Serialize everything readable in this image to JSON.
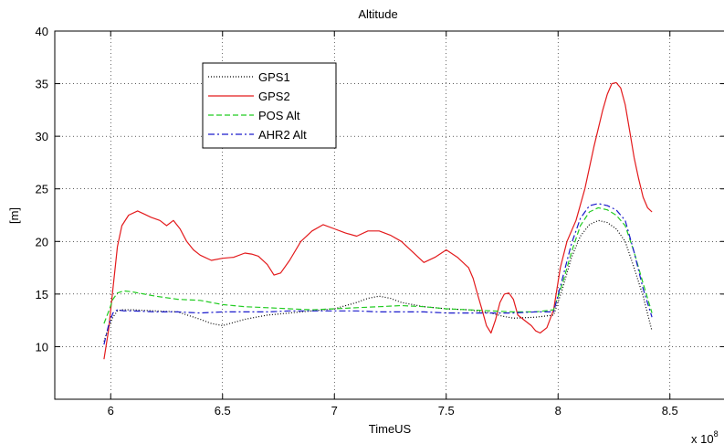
{
  "chart_data": {
    "type": "line",
    "title": "Altitude",
    "xlabel": "TimeUS",
    "ylabel": "[m]",
    "x_multiplier": "x 10",
    "x_multiplier_exp": "8",
    "xlim": [
      5.75,
      8.75
    ],
    "ylim": [
      5,
      40
    ],
    "x_ticks": [
      6,
      6.5,
      7,
      7.5,
      8,
      8.5
    ],
    "x_tick_labels": [
      "6",
      "6.5",
      "7",
      "7.5",
      "8",
      "8.5"
    ],
    "y_ticks": [
      10,
      15,
      20,
      25,
      30,
      35,
      40
    ],
    "y_tick_labels": [
      "10",
      "15",
      "20",
      "25",
      "30",
      "35",
      "40"
    ],
    "grid": true,
    "legend_position": "top-left",
    "series": [
      {
        "name": "GPS1",
        "color": "#000000",
        "style": "dotted",
        "x": [
          5.97,
          5.99,
          6.01,
          6.03,
          6.05,
          6.1,
          6.2,
          6.3,
          6.4,
          6.45,
          6.5,
          6.6,
          6.7,
          6.8,
          6.9,
          7.0,
          7.1,
          7.15,
          7.2,
          7.25,
          7.3,
          7.4,
          7.5,
          7.6,
          7.7,
          7.75,
          7.8,
          7.9,
          7.98,
          8.02,
          8.06,
          8.1,
          8.14,
          8.18,
          8.22,
          8.26,
          8.3,
          8.34,
          8.38,
          8.42
        ],
        "y": [
          10.5,
          11.8,
          12.8,
          13.4,
          13.5,
          13.5,
          13.4,
          13.3,
          12.6,
          12.2,
          12.0,
          12.6,
          13.0,
          13.2,
          13.4,
          13.6,
          14.2,
          14.6,
          14.8,
          14.6,
          14.2,
          13.8,
          13.6,
          13.5,
          13.2,
          12.9,
          12.7,
          12.8,
          13.0,
          15.5,
          18.5,
          20.5,
          21.6,
          22.0,
          21.8,
          21.2,
          20.0,
          17.5,
          14.8,
          11.5
        ]
      },
      {
        "name": "GPS2",
        "color": "#e31a1c",
        "style": "solid",
        "x": [
          5.97,
          5.99,
          6.01,
          6.03,
          6.05,
          6.08,
          6.12,
          6.15,
          6.18,
          6.22,
          6.25,
          6.28,
          6.31,
          6.34,
          6.37,
          6.4,
          6.45,
          6.5,
          6.55,
          6.6,
          6.63,
          6.66,
          6.7,
          6.73,
          6.76,
          6.8,
          6.85,
          6.9,
          6.95,
          7.0,
          7.05,
          7.1,
          7.15,
          7.2,
          7.25,
          7.3,
          7.35,
          7.4,
          7.45,
          7.5,
          7.55,
          7.6,
          7.62,
          7.64,
          7.66,
          7.68,
          7.7,
          7.72,
          7.74,
          7.76,
          7.78,
          7.8,
          7.82,
          7.85,
          7.88,
          7.9,
          7.92,
          7.95,
          7.98,
          8.01,
          8.04,
          8.08,
          8.12,
          8.16,
          8.2,
          8.22,
          8.24,
          8.26,
          8.28,
          8.3,
          8.32,
          8.34,
          8.36,
          8.38,
          8.4,
          8.42
        ],
        "y": [
          8.8,
          11.5,
          15.5,
          19.5,
          21.5,
          22.5,
          22.9,
          22.6,
          22.3,
          22.0,
          21.5,
          22.0,
          21.2,
          20.0,
          19.2,
          18.7,
          18.2,
          18.4,
          18.5,
          18.9,
          18.8,
          18.6,
          17.8,
          16.8,
          17.0,
          18.2,
          20.0,
          21.0,
          21.6,
          21.2,
          20.8,
          20.5,
          21.0,
          21.0,
          20.6,
          20.0,
          19.0,
          18.0,
          18.5,
          19.2,
          18.5,
          17.5,
          16.5,
          15.0,
          13.5,
          12.0,
          11.3,
          12.5,
          14.2,
          15.0,
          15.1,
          14.5,
          13.0,
          12.5,
          12.0,
          11.5,
          11.3,
          11.8,
          13.5,
          17.5,
          20.0,
          22.0,
          25.0,
          29.0,
          32.5,
          34.0,
          35.0,
          35.1,
          34.6,
          33.0,
          30.5,
          28.0,
          26.0,
          24.2,
          23.2,
          22.8
        ]
      },
      {
        "name": "POS Alt",
        "color": "#22cc22",
        "style": "dashed",
        "x": [
          5.97,
          5.99,
          6.01,
          6.03,
          6.06,
          6.1,
          6.15,
          6.2,
          6.3,
          6.4,
          6.5,
          6.6,
          6.7,
          6.8,
          6.9,
          7.0,
          7.1,
          7.2,
          7.3,
          7.4,
          7.5,
          7.6,
          7.7,
          7.8,
          7.9,
          7.98,
          8.02,
          8.06,
          8.1,
          8.14,
          8.18,
          8.22,
          8.26,
          8.3,
          8.34,
          8.38,
          8.42
        ],
        "y": [
          12.2,
          13.3,
          14.5,
          15.1,
          15.3,
          15.2,
          15.0,
          14.8,
          14.5,
          14.4,
          14.0,
          13.8,
          13.7,
          13.6,
          13.5,
          13.6,
          13.7,
          13.8,
          13.9,
          13.8,
          13.6,
          13.5,
          13.4,
          13.3,
          13.3,
          13.5,
          16.0,
          19.0,
          21.5,
          22.8,
          23.2,
          23.0,
          22.5,
          21.5,
          19.0,
          16.0,
          13.2
        ]
      },
      {
        "name": "AHR2 Alt",
        "color": "#1a1acc",
        "style": "dashdot",
        "x": [
          5.97,
          5.99,
          6.01,
          6.03,
          6.06,
          6.1,
          6.2,
          6.3,
          6.4,
          6.5,
          6.6,
          6.7,
          6.8,
          6.9,
          7.0,
          7.1,
          7.2,
          7.3,
          7.4,
          7.5,
          7.6,
          7.7,
          7.8,
          7.9,
          7.98,
          8.02,
          8.06,
          8.1,
          8.14,
          8.18,
          8.22,
          8.26,
          8.3,
          8.34,
          8.38,
          8.42
        ],
        "y": [
          10.2,
          12.0,
          13.2,
          13.5,
          13.4,
          13.4,
          13.3,
          13.3,
          13.2,
          13.3,
          13.3,
          13.3,
          13.4,
          13.4,
          13.4,
          13.4,
          13.3,
          13.3,
          13.3,
          13.2,
          13.2,
          13.2,
          13.2,
          13.3,
          13.3,
          16.5,
          19.8,
          22.2,
          23.4,
          23.6,
          23.4,
          23.0,
          22.0,
          19.0,
          15.5,
          12.8
        ]
      }
    ]
  }
}
